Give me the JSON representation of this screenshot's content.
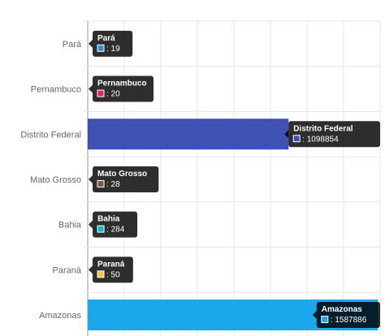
{
  "chart_data": {
    "type": "bar",
    "orientation": "horizontal",
    "title": "",
    "xlabel": "",
    "ylabel": "",
    "grid": true,
    "categories": [
      "Pará",
      "Pernambuco",
      "Distrito Federal",
      "Mato Grosso",
      "Bahia",
      "Paraná",
      "Amazonas"
    ],
    "values": [
      19,
      20,
      1098854,
      28,
      284,
      50,
      1587886
    ],
    "colors": [
      "#2f8fd9",
      "#e0245e",
      "#3f51b5",
      "#795548",
      "#1ab2e0",
      "#ffc13b",
      "#1aa7ec"
    ],
    "xlim": [
      0,
      1600000
    ]
  }
}
